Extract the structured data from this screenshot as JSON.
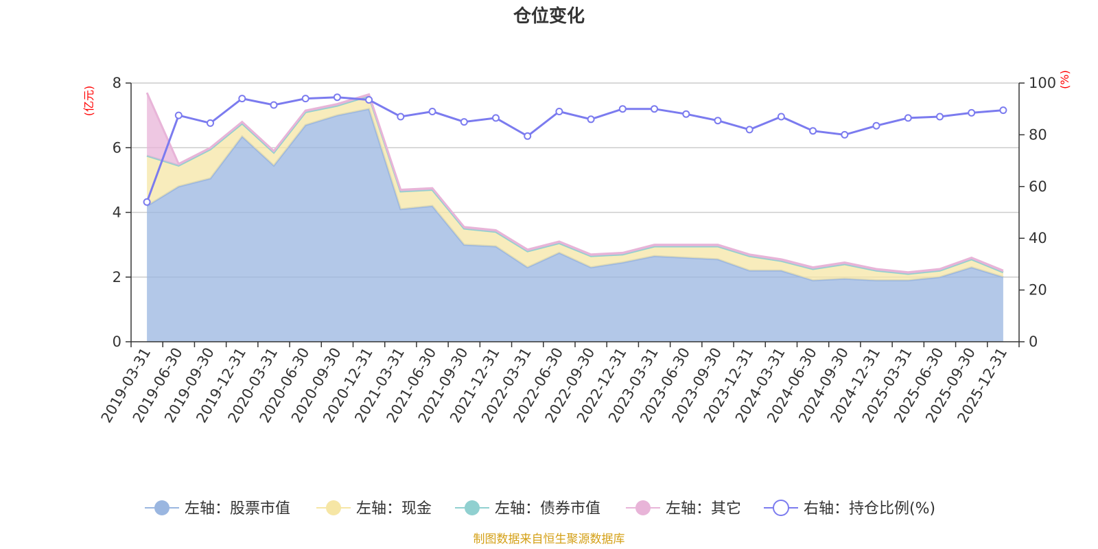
{
  "chart_data": {
    "type": "area",
    "title": "仓位变化",
    "left_axis": {
      "unit": "(亿元)",
      "ylim": [
        0,
        8
      ],
      "ticks": [
        0,
        2,
        4,
        6,
        8
      ]
    },
    "right_axis": {
      "unit": "(%)",
      "ylim": [
        0,
        100
      ],
      "ticks": [
        0,
        20,
        40,
        60,
        80,
        100
      ]
    },
    "categories": [
      "2019-03-31",
      "2019-06-30",
      "2019-09-30",
      "2019-12-31",
      "2020-03-31",
      "2020-06-30",
      "2020-09-30",
      "2020-12-31",
      "2021-03-31",
      "2021-06-30",
      "2021-09-30",
      "2021-12-31",
      "2022-03-31",
      "2022-06-30",
      "2022-09-30",
      "2022-12-31",
      "2023-03-31",
      "2023-06-30",
      "2023-09-30",
      "2023-12-31",
      "2024-03-31",
      "2024-06-30",
      "2024-09-30",
      "2024-12-31",
      "2025-03-31",
      "2025-06-30",
      "2025-09-30",
      "2025-12-31"
    ],
    "series": [
      {
        "name": "左轴：股票市值",
        "axis": "left",
        "color": "#9ab6e0",
        "values": [
          4.2,
          4.8,
          5.05,
          6.35,
          5.45,
          6.7,
          7.0,
          7.2,
          4.1,
          4.2,
          3.0,
          2.95,
          2.3,
          2.75,
          2.3,
          2.45,
          2.65,
          2.6,
          2.55,
          2.2,
          2.2,
          1.9,
          1.95,
          1.9,
          1.9,
          2.0,
          2.3,
          2.0
        ]
      },
      {
        "name": "左轴：现金",
        "axis": "left",
        "color": "#f6e6a5",
        "values": [
          1.55,
          0.65,
          0.9,
          0.4,
          0.4,
          0.4,
          0.3,
          0.4,
          0.55,
          0.5,
          0.5,
          0.45,
          0.5,
          0.3,
          0.35,
          0.25,
          0.3,
          0.35,
          0.4,
          0.45,
          0.3,
          0.35,
          0.45,
          0.3,
          0.2,
          0.2,
          0.25,
          0.15
        ]
      },
      {
        "name": "左轴：债券市值",
        "axis": "left",
        "color": "#90d0d0",
        "values": [
          0,
          0,
          0,
          0,
          0,
          0,
          0,
          0,
          0,
          0,
          0,
          0,
          0,
          0,
          0,
          0,
          0,
          0,
          0,
          0,
          0,
          0,
          0,
          0,
          0,
          0,
          0,
          0
        ]
      },
      {
        "name": "左轴：其它",
        "axis": "left",
        "color": "#e8b4d8",
        "values": [
          1.95,
          0.05,
          0.05,
          0.05,
          0.05,
          0.05,
          0.05,
          0.05,
          0.05,
          0.05,
          0.05,
          0.05,
          0.05,
          0.05,
          0.05,
          0.05,
          0.05,
          0.05,
          0.05,
          0.05,
          0.05,
          0.05,
          0.05,
          0.05,
          0.05,
          0.05,
          0.05,
          0.05
        ]
      },
      {
        "name": "右轴：持仓比例(%)",
        "axis": "right",
        "color": "#7b7bef",
        "values": [
          54,
          87.5,
          84.5,
          94,
          91.5,
          94,
          94.5,
          93.5,
          87,
          89,
          85,
          86.5,
          79.5,
          89,
          86,
          90,
          90,
          88,
          85.5,
          82,
          87,
          81.5,
          80,
          83.5,
          86.5,
          87,
          88.5,
          89.5
        ]
      }
    ],
    "source_note": "制图数据来自恒生聚源数据库"
  }
}
